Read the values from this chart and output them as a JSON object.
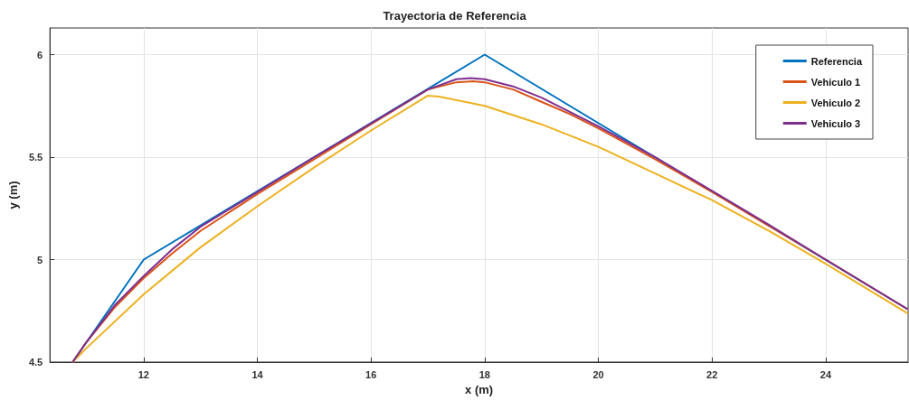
{
  "chart_data": {
    "type": "line",
    "title": "Trayectoria de Referencia",
    "xlabel": "x (m)",
    "ylabel": "y (m)",
    "xlim": [
      10.35,
      25.45
    ],
    "ylim": [
      4.5,
      6.13
    ],
    "xticks": [
      12,
      14,
      16,
      18,
      20,
      22,
      24
    ],
    "yticks": [
      4.5,
      5,
      5.5,
      6
    ],
    "grid": true,
    "legend": "top right",
    "marker": "none",
    "line_style": "solid",
    "series": [
      {
        "name": "Referencia",
        "color": "#0072bd",
        "x": [
          10.75,
          12,
          18,
          25.43
        ],
        "values": [
          4.5,
          5,
          6,
          4.76
        ]
      },
      {
        "name": "Vehiculo 1",
        "color": "#d95319",
        "x": [
          10.75,
          11,
          11.5,
          12,
          12.5,
          13,
          14,
          15,
          16,
          17,
          17.5,
          17.8,
          18,
          18.5,
          19,
          19.5,
          20,
          21,
          22,
          23,
          24,
          25.43
        ],
        "values": [
          4.5,
          4.6,
          4.77,
          4.91,
          5.03,
          5.14,
          5.32,
          5.49,
          5.66,
          5.83,
          5.865,
          5.87,
          5.865,
          5.83,
          5.77,
          5.71,
          5.64,
          5.49,
          5.33,
          5.165,
          5.0,
          4.76
        ]
      },
      {
        "name": "Vehiculo 2",
        "color": "#edb120",
        "x": [
          10.75,
          11,
          12,
          13,
          14,
          15,
          16,
          17,
          17.2,
          18,
          19,
          20,
          21,
          22,
          23,
          24,
          25.43
        ],
        "values": [
          4.5,
          4.57,
          4.83,
          5.06,
          5.26,
          5.45,
          5.63,
          5.8,
          5.795,
          5.75,
          5.66,
          5.55,
          5.42,
          5.29,
          5.14,
          4.98,
          4.74
        ]
      },
      {
        "name": "Vehiculo 3",
        "color": "#7e2f8e",
        "x": [
          10.75,
          11,
          11.5,
          12,
          12.5,
          13,
          14,
          15,
          16,
          17,
          17.5,
          17.75,
          18,
          18.5,
          19,
          20,
          21,
          22,
          23,
          24,
          25.43
        ],
        "values": [
          4.5,
          4.6,
          4.78,
          4.92,
          5.05,
          5.16,
          5.33,
          5.5,
          5.665,
          5.83,
          5.88,
          5.885,
          5.88,
          5.845,
          5.79,
          5.65,
          5.5,
          5.335,
          5.17,
          5.0,
          4.76
        ]
      }
    ]
  }
}
